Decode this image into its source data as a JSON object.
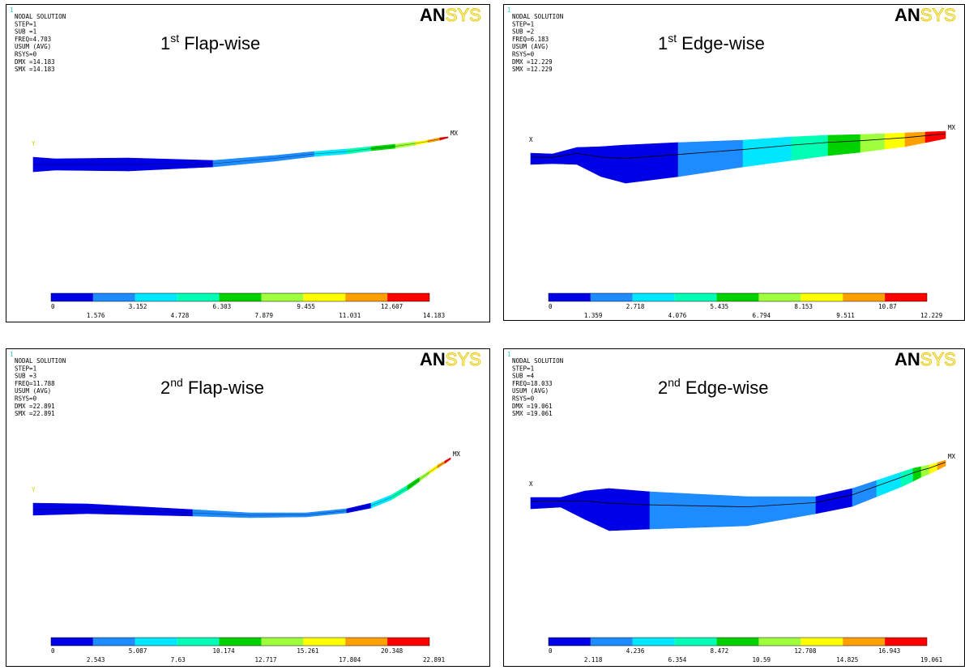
{
  "panels": [
    {
      "corner": "1",
      "header": [
        "NODAL SOLUTION",
        "STEP=1",
        "SUB =1",
        "FREQ=4.703",
        "USUM     (AVG)",
        "RSYS=0",
        "DMX =14.183",
        "SMX =14.183"
      ],
      "title": {
        "number": "1",
        "ordinal": "st",
        "text": "Flap-wise"
      },
      "axis_label": "Y",
      "max_label": "MX",
      "logo": {
        "left": "AN",
        "right": "SYS"
      },
      "legend": [
        "0",
        "1.576",
        "3.152",
        "4.728",
        "6.303",
        "7.879",
        "9.455",
        "11.031",
        "12.607",
        "14.183"
      ]
    },
    {
      "corner": "1",
      "header": [
        "NODAL SOLUTION",
        "STEP=1",
        "SUB =2",
        "FREQ=6.183",
        "USUM     (AVG)",
        "RSYS=0",
        "DMX =12.229",
        "SMX =12.229"
      ],
      "title": {
        "number": "1",
        "ordinal": "st",
        "text": "Edge-wise"
      },
      "axis_label": "X",
      "max_label": "MX",
      "logo": {
        "left": "AN",
        "right": "SYS"
      },
      "legend": [
        "0",
        "1.359",
        "2.718",
        "4.076",
        "5.435",
        "6.794",
        "8.153",
        "9.511",
        "10.87",
        "12.229"
      ]
    },
    {
      "corner": "1",
      "header": [
        "NODAL SOLUTION",
        "STEP=1",
        "SUB =3",
        "FREQ=11.788",
        "USUM     (AVG)",
        "RSYS=0",
        "DMX =22.891",
        "SMX =22.891"
      ],
      "title": {
        "number": "2",
        "ordinal": "nd",
        "text": "Flap-wise"
      },
      "axis_label": "Y",
      "max_label": "MX",
      "logo": {
        "left": "AN",
        "right": "SYS"
      },
      "legend": [
        "0",
        "2.543",
        "5.087",
        "7.63",
        "10.174",
        "12.717",
        "15.261",
        "17.804",
        "20.348",
        "22.891"
      ]
    },
    {
      "corner": "1",
      "header": [
        "NODAL SOLUTION",
        "STEP=1",
        "SUB =4",
        "FREQ=18.033",
        "USUM     (AVG)",
        "RSYS=0",
        "DMX =19.061",
        "SMX =19.061"
      ],
      "title": {
        "number": "2",
        "ordinal": "nd",
        "text": "Edge-wise"
      },
      "axis_label": "X",
      "max_label": "MX",
      "logo": {
        "left": "AN",
        "right": "SYS"
      },
      "legend": [
        "0",
        "2.118",
        "4.236",
        "6.354",
        "8.472",
        "10.59",
        "12.708",
        "14.825",
        "16.943",
        "19.061"
      ]
    }
  ]
}
